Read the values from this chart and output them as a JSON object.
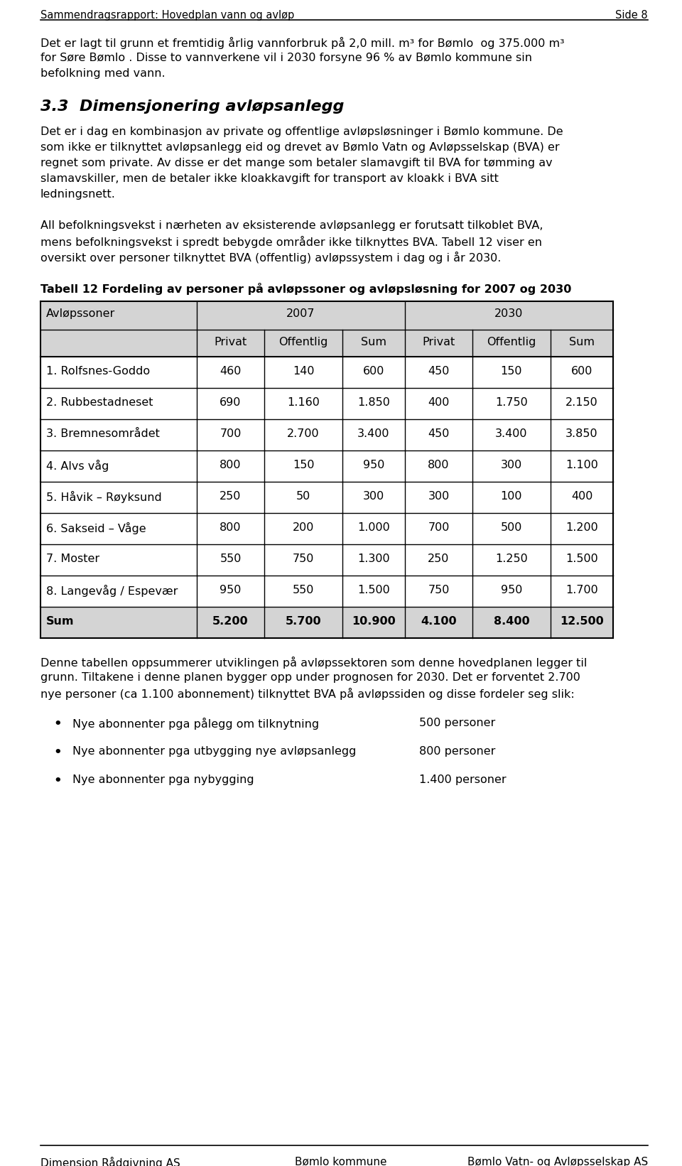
{
  "header_left": "Sammendragsrapport: Hovedplan vann og avløp",
  "header_right": "Side 8",
  "footer_left": "Dimensjon Rådgivning AS",
  "footer_center": "Bømlo kommune",
  "footer_right": "Bømlo Vatn- og Avløpsselskap AS",
  "para1_lines": [
    "Det er lagt til grunn et fremtidig årlig vannforbruk på 2,0 mill. m³ for Bømlo  og 375.000 m³",
    "for Søre Bømlo . Disse to vannverkene vil i 2030 forsyne 96 % av Bømlo kommune sin",
    "befolkning med vann."
  ],
  "section_heading": "3.3  Dimensjonering avløpsanlegg",
  "para3_lines": [
    "Det er i dag en kombinasjon av private og offentlige avløpsløsninger i Bømlo kommune. De",
    "som ikke er tilknyttet avløpsanlegg eid og drevet av Bømlo Vatn og Avløpsselskap (BVA) er",
    "regnet som private. Av disse er det mange som betaler slamavgift til BVA for tømming av",
    "slamavskiller, men de betaler ikke kloakkavgift for transport av kloakk i BVA sitt",
    "ledningsnett."
  ],
  "para4_lines": [
    "All befolkningsvekst i nærheten av eksisterende avløpsanlegg er forutsatt tilkoblet BVA,",
    "mens befolkningsvekst i spredt bebygde områder ikke tilknyttes BVA. Tabell 12 viser en",
    "oversikt over personer tilknyttet BVA (offentlig) avløpssystem i dag og i år 2030."
  ],
  "table_caption": "Tabell 12 Fordeling av personer på avløpssoner og avløpsløsning for 2007 og 2030",
  "table_rows": [
    [
      "1. Rolfsnes-Goddo",
      "460",
      "140",
      "600",
      "450",
      "150",
      "600"
    ],
    [
      "2. Rubbestadneset",
      "690",
      "1.160",
      "1.850",
      "400",
      "1.750",
      "2.150"
    ],
    [
      "3. Bremnesområdet",
      "700",
      "2.700",
      "3.400",
      "450",
      "3.400",
      "3.850"
    ],
    [
      "4. Alvs våg",
      "800",
      "150",
      "950",
      "800",
      "300",
      "1.100"
    ],
    [
      "5. Håvik – Røyksund",
      "250",
      "50",
      "300",
      "300",
      "100",
      "400"
    ],
    [
      "6. Sakseid – Våge",
      "800",
      "200",
      "1.000",
      "700",
      "500",
      "1.200"
    ],
    [
      "7. Moster",
      "550",
      "750",
      "1.300",
      "250",
      "1.250",
      "1.500"
    ],
    [
      "8. Langevåg / Espevær",
      "950",
      "550",
      "1.500",
      "750",
      "950",
      "1.700"
    ],
    [
      "Sum",
      "5.200",
      "5.700",
      "10.900",
      "4.100",
      "8.400",
      "12.500"
    ]
  ],
  "post_lines": [
    "Denne tabellen oppsummerer utviklingen på avløpssektoren som denne hovedplanen legger til",
    "grunn. Tiltakene i denne planen bygger opp under prognosen for 2030. Det er forventet 2.700",
    "nye personer (ca 1.100 abonnement) tilknyttet BVA på avløpssiden og disse fordeler seg slik:"
  ],
  "bullet_points": [
    [
      "Nye abonnenter pga pålegg om tilknytning",
      "500 personer"
    ],
    [
      "Nye abonnenter pga utbygging nye avløpsanlegg",
      "800 personer"
    ],
    [
      "Nye abonnenter pga nybygging",
      "1.400 personer"
    ]
  ],
  "bg_color": "#ffffff",
  "table_header_bg": "#d4d4d4",
  "table_line_color": "#000000"
}
